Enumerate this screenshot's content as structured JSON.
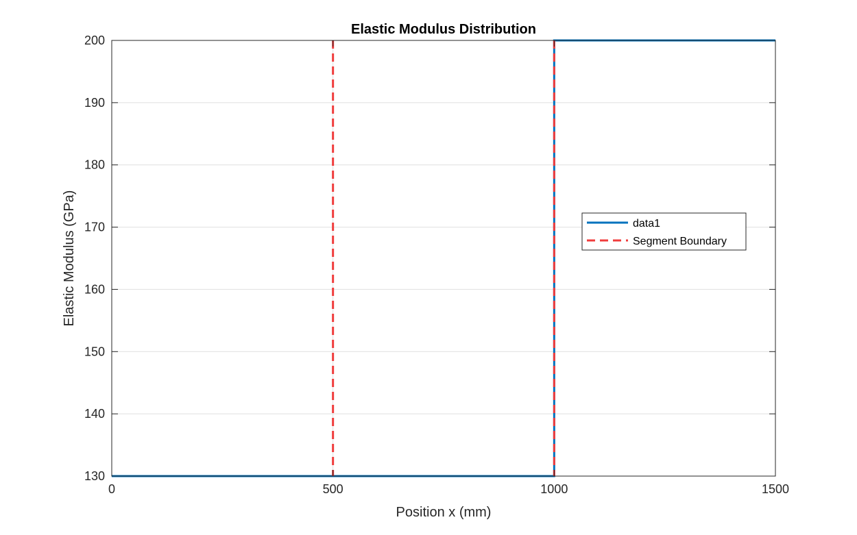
{
  "chart_data": {
    "type": "line",
    "title": "Elastic Modulus Distribution",
    "xlabel": "Position x (mm)",
    "ylabel": "Elastic Modulus (GPa)",
    "xlim": [
      0,
      1500
    ],
    "ylim": [
      130,
      200
    ],
    "xticks": [
      0,
      500,
      1000,
      1500
    ],
    "yticks": [
      130,
      140,
      150,
      160,
      170,
      180,
      190,
      200
    ],
    "grid": true,
    "legend_position": "center-right",
    "series": [
      {
        "name": "data1",
        "style": "solid",
        "color": "#0072BD",
        "x": [
          0,
          1000,
          1000,
          1500
        ],
        "y": [
          130,
          130,
          200,
          200
        ]
      },
      {
        "name": "Segment Boundary",
        "style": "dashed",
        "color": "#F03C3C",
        "vertical_lines_x": [
          500,
          1000
        ]
      }
    ]
  }
}
